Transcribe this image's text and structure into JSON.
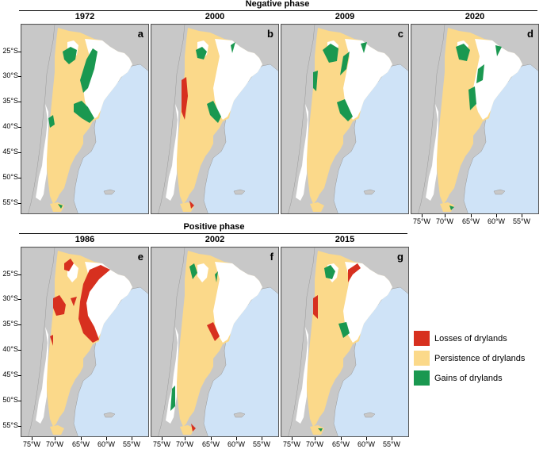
{
  "phases": {
    "negative": "Negative phase",
    "positive": "Positive phase"
  },
  "panels": [
    {
      "year": "1972",
      "letter": "a"
    },
    {
      "year": "2000",
      "letter": "b"
    },
    {
      "year": "2009",
      "letter": "c"
    },
    {
      "year": "2020",
      "letter": "d"
    },
    {
      "year": "1986",
      "letter": "e"
    },
    {
      "year": "2002",
      "letter": "f"
    },
    {
      "year": "2015",
      "letter": "g"
    }
  ],
  "latitude_labels": [
    "25°S",
    "30°S",
    "35°S",
    "40°S",
    "45°S",
    "50°S",
    "55°S"
  ],
  "longitude_labels": [
    "75°W",
    "70°W",
    "65°W",
    "60°W",
    "55°W"
  ],
  "legend": [
    {
      "label": "Losses of drylands",
      "color": "#d7301f"
    },
    {
      "label": "Persistence of drylands",
      "color": "#fbd98a"
    },
    {
      "label": "Gains of drylands",
      "color": "#1a9850"
    }
  ],
  "colors": {
    "ocean": "#cfe3f7",
    "land_other": "#c8c8c8",
    "non_dryland": "#ffffff",
    "persistence": "#fbd98a",
    "losses": "#d7301f",
    "gains": "#1a9850"
  }
}
